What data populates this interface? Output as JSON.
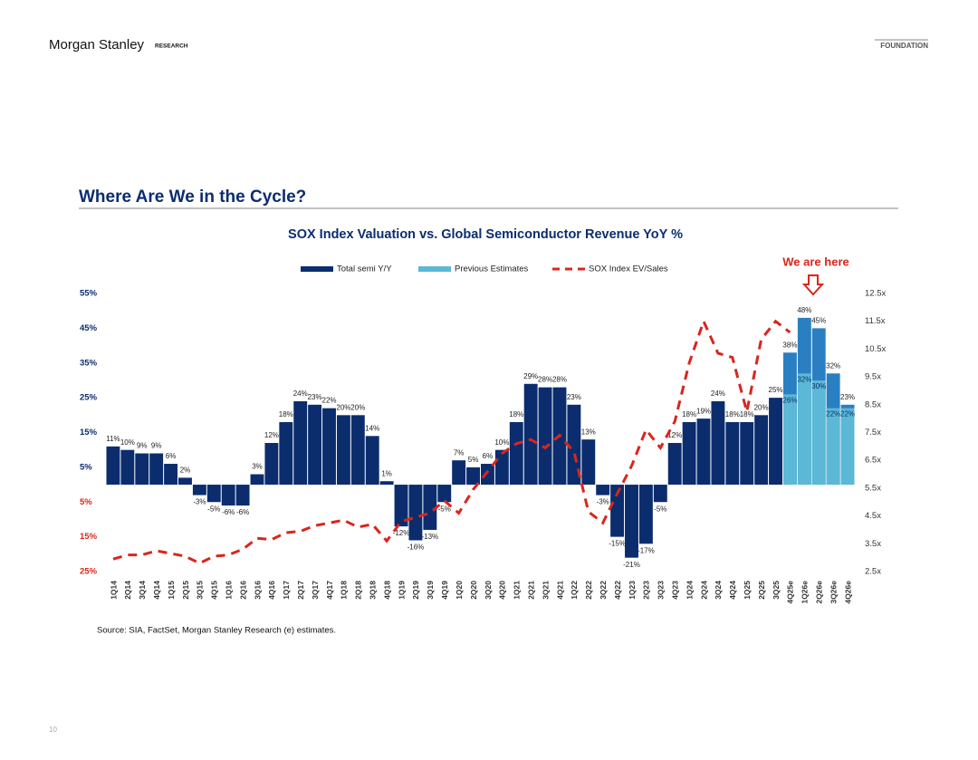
{
  "header": {
    "brand": "Morgan Stanley",
    "section": "RESEARCH",
    "tag": "FOUNDATION"
  },
  "slide_title": "Where Are We in the Cycle?",
  "source": "Source: SIA, FactSet, Morgan Stanley Research (e) estimates.",
  "page_number": "10",
  "chart_data": {
    "type": "bar",
    "title": "SOX Index Valuation vs. Global Semiconductor Revenue YoY %",
    "annotation": "We are here",
    "categories": [
      "1Q14",
      "2Q14",
      "3Q14",
      "4Q14",
      "1Q15",
      "2Q15",
      "3Q15",
      "4Q15",
      "1Q16",
      "2Q16",
      "3Q16",
      "4Q16",
      "1Q17",
      "2Q17",
      "3Q17",
      "4Q17",
      "1Q18",
      "2Q18",
      "3Q18",
      "4Q18",
      "1Q19",
      "2Q19",
      "3Q19",
      "4Q19",
      "1Q20",
      "2Q20",
      "3Q20",
      "4Q20",
      "1Q21",
      "2Q21",
      "3Q21",
      "4Q21",
      "1Q22",
      "2Q22",
      "3Q22",
      "4Q22",
      "1Q23",
      "2Q23",
      "3Q23",
      "4Q23",
      "1Q24",
      "2Q24",
      "3Q24",
      "4Q24",
      "1Q25",
      "2Q25",
      "3Q25",
      "4Q25e",
      "1Q26e",
      "2Q26e",
      "3Q26e",
      "4Q26e"
    ],
    "series": [
      {
        "name": "Total semi Y/Y",
        "color": "#0b2d6e",
        "estimate_color": "#2a7fc2",
        "values": [
          11,
          10,
          9,
          9,
          6,
          2,
          -3,
          -5,
          -6,
          -6,
          3,
          12,
          18,
          24,
          23,
          22,
          20,
          20,
          14,
          1,
          -12,
          -16,
          -13,
          -5,
          7,
          5,
          6,
          10,
          18,
          29,
          28,
          28,
          23,
          13,
          -3,
          -15,
          -21,
          -17,
          -5,
          12,
          18,
          19,
          24,
          18,
          18,
          20,
          25,
          38,
          48,
          45,
          32,
          23
        ],
        "value_labels": [
          "11%",
          "10%",
          "9%",
          "9%",
          "6%",
          "2%",
          "-3%",
          "-5%",
          "-6%",
          "-6%",
          "3%",
          "12%",
          "18%",
          "24%",
          "23%",
          "22%",
          "20%",
          "20%",
          "14%",
          "1%",
          "-12%",
          "-16%",
          "-13%",
          "-5%",
          "7%",
          "5%",
          "6%",
          "10%",
          "18%",
          "29%",
          "28%",
          "28%",
          "23%",
          "13%",
          "-3%",
          "-15%",
          "-21%",
          "-17%",
          "-5%",
          "12%",
          "18%",
          "19%",
          "24%",
          "18%",
          "18%",
          "20%",
          "25%",
          "38%",
          "48%",
          "45%",
          "32%",
          "23%"
        ]
      },
      {
        "name": "Previous Estimates",
        "color": "#5bb8d6",
        "values": [
          null,
          null,
          null,
          null,
          null,
          null,
          null,
          null,
          null,
          null,
          null,
          null,
          null,
          null,
          null,
          null,
          null,
          null,
          null,
          null,
          null,
          null,
          null,
          null,
          null,
          null,
          null,
          null,
          null,
          null,
          null,
          null,
          null,
          null,
          null,
          null,
          null,
          null,
          null,
          null,
          null,
          null,
          null,
          null,
          null,
          null,
          null,
          26,
          32,
          30,
          22,
          22
        ],
        "value_labels": [
          null,
          null,
          null,
          null,
          null,
          null,
          null,
          null,
          null,
          null,
          null,
          null,
          null,
          null,
          null,
          null,
          null,
          null,
          null,
          null,
          null,
          null,
          null,
          null,
          null,
          null,
          null,
          null,
          null,
          null,
          null,
          null,
          null,
          null,
          null,
          null,
          null,
          null,
          null,
          null,
          null,
          null,
          null,
          null,
          null,
          null,
          null,
          "26%",
          "32%",
          "30%",
          "22%",
          "22%"
        ]
      },
      {
        "name": "SOX Index EV/Sales",
        "color": "#d9261c",
        "axis": "y2",
        "type": "line",
        "values": [
          2.95,
          3.1,
          3.1,
          3.25,
          3.15,
          3.05,
          2.8,
          3.05,
          3.1,
          3.3,
          3.7,
          3.65,
          3.9,
          3.95,
          4.15,
          4.25,
          4.35,
          4.1,
          4.2,
          3.6,
          4.3,
          4.45,
          4.6,
          5.05,
          4.6,
          5.45,
          6.1,
          6.75,
          7.1,
          7.25,
          6.95,
          7.4,
          6.8,
          4.65,
          4.25,
          5.3,
          6.3,
          7.6,
          6.95,
          7.9,
          10.0,
          11.5,
          10.35,
          10.2,
          8.25,
          10.85,
          11.5,
          11.1,
          null,
          null,
          null,
          null
        ]
      }
    ],
    "ylim": [
      -25,
      55
    ],
    "yticks": [
      {
        "value": 55,
        "label": "55%"
      },
      {
        "value": 45,
        "label": "45%"
      },
      {
        "value": 35,
        "label": "35%"
      },
      {
        "value": 25,
        "label": "25%"
      },
      {
        "value": 15,
        "label": "15%"
      },
      {
        "value": 5,
        "label": "5%"
      },
      {
        "value": -5,
        "label": "5%"
      },
      {
        "value": -15,
        "label": "15%"
      },
      {
        "value": -25,
        "label": "25%"
      }
    ],
    "negative_tick_color": "#d9261c",
    "y2lim": [
      2.5,
      12.5
    ],
    "y2ticks": [
      {
        "value": 12.5,
        "label": "12.5x"
      },
      {
        "value": 11.5,
        "label": "11.5x"
      },
      {
        "value": 10.5,
        "label": "10.5x"
      },
      {
        "value": 9.5,
        "label": "9.5x"
      },
      {
        "value": 8.5,
        "label": "8.5x"
      },
      {
        "value": 7.5,
        "label": "7.5x"
      },
      {
        "value": 6.5,
        "label": "6.5x"
      },
      {
        "value": 5.5,
        "label": "5.5x"
      },
      {
        "value": 4.5,
        "label": "4.5x"
      },
      {
        "value": 3.5,
        "label": "3.5x"
      },
      {
        "value": 2.5,
        "label": "2.5x"
      }
    ],
    "grid": false,
    "legend": "top"
  }
}
